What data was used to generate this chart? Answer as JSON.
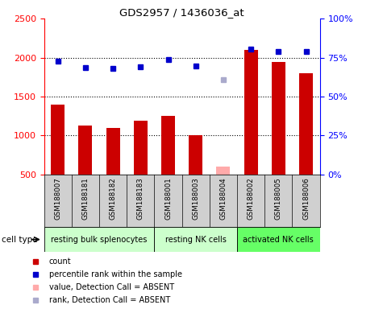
{
  "title": "GDS2957 / 1436036_at",
  "samples": [
    "GSM188007",
    "GSM188181",
    "GSM188182",
    "GSM188183",
    "GSM188001",
    "GSM188003",
    "GSM188004",
    "GSM188002",
    "GSM188005",
    "GSM188006"
  ],
  "count_values": [
    1400,
    1130,
    1100,
    1190,
    1250,
    1000,
    null,
    2100,
    1940,
    1800
  ],
  "count_absent": [
    null,
    null,
    null,
    null,
    null,
    null,
    600,
    null,
    null,
    null
  ],
  "rank_values": [
    1950,
    1870,
    1860,
    1885,
    1970,
    1895,
    null,
    2110,
    2080,
    2080
  ],
  "rank_absent": [
    null,
    null,
    null,
    null,
    null,
    null,
    1720,
    null,
    null,
    null
  ],
  "count_color": "#cc0000",
  "count_absent_color": "#ffaaaa",
  "rank_color": "#0000cc",
  "rank_absent_color": "#aaaacc",
  "ylim_left": [
    500,
    2500
  ],
  "ylim_right": [
    0,
    100
  ],
  "yticks_left": [
    500,
    1000,
    1500,
    2000,
    2500
  ],
  "yticks_right": [
    0,
    25,
    50,
    75,
    100
  ],
  "ytick_labels_right": [
    "0%",
    "25%",
    "50%",
    "75%",
    "100%"
  ],
  "hlines": [
    1000,
    1500,
    2000
  ],
  "groups": [
    {
      "label": "resting bulk splenocytes",
      "start": 0,
      "end": 3,
      "color": "#ccffcc"
    },
    {
      "label": "resting NK cells",
      "start": 4,
      "end": 6,
      "color": "#ccffcc"
    },
    {
      "label": "activated NK cells",
      "start": 7,
      "end": 9,
      "color": "#66ff66"
    }
  ],
  "cell_type_label": "cell type",
  "sample_bg_color": "#d0d0d0",
  "plot_bg": "#ffffff"
}
